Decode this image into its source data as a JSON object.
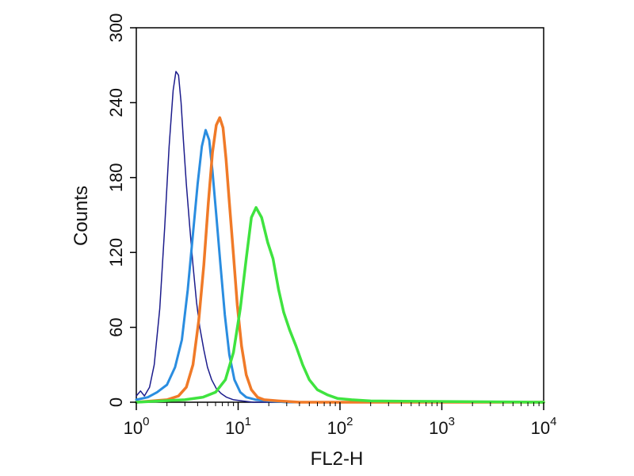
{
  "chart_data": {
    "type": "line",
    "xlabel": "FL2-H",
    "ylabel": "Counts",
    "x_scale": "log",
    "xlim": [
      1,
      10000
    ],
    "ylim": [
      0,
      300
    ],
    "x_ticks": [
      {
        "base": "10",
        "exp": "0",
        "value": 1
      },
      {
        "base": "10",
        "exp": "1",
        "value": 10
      },
      {
        "base": "10",
        "exp": "2",
        "value": 100
      },
      {
        "base": "10",
        "exp": "3",
        "value": 1000
      },
      {
        "base": "10",
        "exp": "4",
        "value": 10000
      }
    ],
    "y_ticks": [
      "0",
      "60",
      "120",
      "180",
      "240",
      "300"
    ],
    "grid": false,
    "series": [
      {
        "color": "#1c1c8c",
        "stroke_weight": "thin",
        "points": [
          [
            1.0,
            5
          ],
          [
            1.1,
            9
          ],
          [
            1.2,
            5
          ],
          [
            1.35,
            12
          ],
          [
            1.5,
            30
          ],
          [
            1.7,
            75
          ],
          [
            1.9,
            140
          ],
          [
            2.1,
            205
          ],
          [
            2.3,
            250
          ],
          [
            2.45,
            265
          ],
          [
            2.6,
            262
          ],
          [
            2.75,
            240
          ],
          [
            2.9,
            210
          ],
          [
            3.1,
            175
          ],
          [
            3.35,
            140
          ],
          [
            3.6,
            110
          ],
          [
            3.9,
            80
          ],
          [
            4.2,
            60
          ],
          [
            4.6,
            42
          ],
          [
            5.0,
            28
          ],
          [
            5.5,
            18
          ],
          [
            6.1,
            11
          ],
          [
            6.8,
            7
          ],
          [
            7.7,
            4
          ],
          [
            9,
            2
          ],
          [
            11,
            1
          ],
          [
            14,
            0
          ],
          [
            20,
            0
          ],
          [
            10000,
            0
          ]
        ]
      },
      {
        "color": "#2a8de0",
        "stroke_weight": "medium",
        "points": [
          [
            1.0,
            2
          ],
          [
            1.3,
            4
          ],
          [
            1.6,
            8
          ],
          [
            2.0,
            14
          ],
          [
            2.4,
            28
          ],
          [
            2.8,
            50
          ],
          [
            3.2,
            90
          ],
          [
            3.6,
            135
          ],
          [
            4.0,
            175
          ],
          [
            4.4,
            205
          ],
          [
            4.8,
            218
          ],
          [
            5.2,
            210
          ],
          [
            5.6,
            185
          ],
          [
            6.1,
            150
          ],
          [
            6.7,
            110
          ],
          [
            7.4,
            70
          ],
          [
            8.2,
            38
          ],
          [
            9.2,
            18
          ],
          [
            10.5,
            8
          ],
          [
            12,
            4
          ],
          [
            15,
            2
          ],
          [
            20,
            1
          ],
          [
            30,
            0
          ],
          [
            10000,
            0
          ]
        ]
      },
      {
        "color": "#f07a28",
        "stroke_weight": "thick",
        "points": [
          [
            1.0,
            0
          ],
          [
            2.0,
            2
          ],
          [
            2.6,
            5
          ],
          [
            3.1,
            12
          ],
          [
            3.6,
            30
          ],
          [
            4.1,
            65
          ],
          [
            4.6,
            110
          ],
          [
            5.1,
            160
          ],
          [
            5.6,
            200
          ],
          [
            6.1,
            222
          ],
          [
            6.6,
            228
          ],
          [
            7.1,
            220
          ],
          [
            7.6,
            195
          ],
          [
            8.2,
            160
          ],
          [
            9.0,
            118
          ],
          [
            9.8,
            78
          ],
          [
            10.8,
            45
          ],
          [
            12,
            22
          ],
          [
            13.5,
            10
          ],
          [
            15.5,
            4
          ],
          [
            18,
            2
          ],
          [
            25,
            1
          ],
          [
            40,
            0
          ],
          [
            10000,
            0
          ]
        ]
      },
      {
        "color": "#3fe33f",
        "stroke_weight": "thick",
        "points": [
          [
            1.0,
            0
          ],
          [
            3.0,
            2
          ],
          [
            4.5,
            4
          ],
          [
            6.0,
            8
          ],
          [
            7.5,
            18
          ],
          [
            9.0,
            40
          ],
          [
            10.5,
            75
          ],
          [
            12,
            115
          ],
          [
            13.5,
            148
          ],
          [
            15,
            156
          ],
          [
            17,
            148
          ],
          [
            19.5,
            128
          ],
          [
            22,
            115
          ],
          [
            25,
            90
          ],
          [
            28,
            72
          ],
          [
            32,
            58
          ],
          [
            37,
            45
          ],
          [
            43,
            30
          ],
          [
            50,
            18
          ],
          [
            60,
            10
          ],
          [
            75,
            6
          ],
          [
            95,
            3
          ],
          [
            130,
            2
          ],
          [
            200,
            1
          ],
          [
            10000,
            0
          ]
        ]
      }
    ]
  }
}
